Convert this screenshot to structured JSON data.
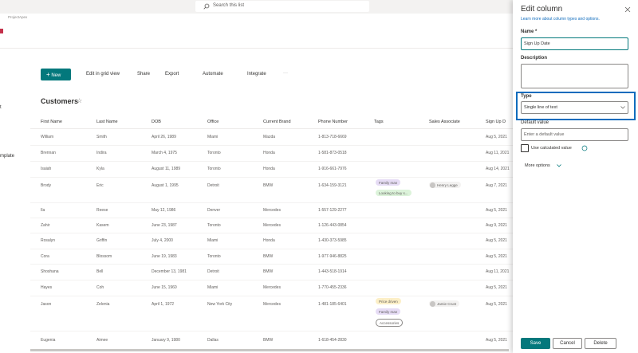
{
  "topbar": {
    "search_placeholder": "Search this list",
    "site": "ProjectApex"
  },
  "nav": {
    "items": [
      "t",
      "mplate"
    ]
  },
  "toolbar": {
    "new": "New",
    "items": [
      "Edit in grid view",
      "Share",
      "Export",
      "Automate",
      "Integrate"
    ],
    "more": "···"
  },
  "list": {
    "title": "Customers",
    "columns": [
      "First Name",
      "Last Name",
      "DOB",
      "Office",
      "Current Brand",
      "Phone Number",
      "Tags",
      "Sales Associate",
      "Sign Up D"
    ],
    "rows": [
      {
        "first": "William",
        "last": "Smith",
        "dob": "April 26, 1989",
        "office": "Miami",
        "brand": "Mazda",
        "phone": "1-813-718-6669",
        "signup": "Aug 5, 2021"
      },
      {
        "first": "Brennan",
        "last": "Indira",
        "dob": "March 4, 1975",
        "office": "Toronto",
        "brand": "Honda",
        "phone": "1-581-873-0518",
        "signup": "Aug 11, 2021"
      },
      {
        "first": "Isaiah",
        "last": "Kyla",
        "dob": "August 11, 1989",
        "office": "Toronto",
        "brand": "Honda",
        "phone": "1-916-661-7976",
        "signup": "Aug 14, 2021"
      },
      {
        "first": "Brody",
        "last": "Eric",
        "dob": "August 1, 1995",
        "office": "Detroit",
        "brand": "BMW",
        "phone": "1-634-159-3121",
        "signup": "Aug 7, 2021",
        "tags": [
          {
            "label": "Family man",
            "color": "#e6dcf5"
          },
          {
            "label": "Looking to buy s...",
            "color": "#dcf3da"
          }
        ],
        "associate": "Henry Legge"
      },
      {
        "first": "Ila",
        "last": "Reese",
        "dob": "May 12, 1986",
        "office": "Denver",
        "brand": "Mercedes",
        "phone": "1-557-129-2277",
        "signup": "Aug 5, 2021"
      },
      {
        "first": "Zahir",
        "last": "Kasem",
        "dob": "June 23, 1987",
        "office": "Toronto",
        "brand": "Mercedes",
        "phone": "1-126-443-0854",
        "signup": "Aug 9, 2021"
      },
      {
        "first": "Rosalyn",
        "last": "Griffin",
        "dob": "July 4, 2000",
        "office": "Miami",
        "brand": "Honda",
        "phone": "1-430-373-5985",
        "signup": "Aug 5, 2021"
      },
      {
        "first": "Cora",
        "last": "Blossom",
        "dob": "June 19, 1983",
        "office": "Toronto",
        "brand": "BMW",
        "phone": "1-977-946-8825",
        "signup": "Aug 5, 2021"
      },
      {
        "first": "Shoshana",
        "last": "Bell",
        "dob": "December 13, 1981",
        "office": "Detroit",
        "brand": "BMW",
        "phone": "1-443-518-1914",
        "signup": "Aug 11, 2021"
      },
      {
        "first": "Hayes",
        "last": "Coh",
        "dob": "June 15, 1960",
        "office": "Miami",
        "brand": "Mercedes",
        "phone": "1-770-455-2336",
        "signup": "Aug 5, 2021"
      },
      {
        "first": "Jason",
        "last": "Zelenia",
        "dob": "April 1, 1972",
        "office": "New York City",
        "brand": "Mercedes",
        "phone": "1-481-185-6401",
        "signup": "Aug 5, 2021",
        "tags": [
          {
            "label": "Price driven",
            "color": "#fcefc7"
          },
          {
            "label": "Family man",
            "color": "#e6dcf5"
          },
          {
            "label": "Accessories",
            "color": "#ffffff"
          }
        ],
        "associate": "Jamie Crust"
      },
      {
        "first": "Eugenia",
        "last": "Aimee",
        "dob": "January 9, 1980",
        "office": "Dallas",
        "brand": "BMW",
        "phone": "1-618-454-2830",
        "signup": "Aug 5, 2021"
      }
    ]
  },
  "panel": {
    "title": "Edit column",
    "link": "Learn more about column types and options.",
    "name_label": "Name *",
    "name_value": "Sign Up Date",
    "description_label": "Description",
    "type_label": "Type",
    "type_value": "Single line of text",
    "default_label": "Default value",
    "default_placeholder": "Enter a default value",
    "calculated_label": "Use calculated value",
    "more_options": "More options",
    "buttons": {
      "save": "Save",
      "cancel": "Cancel",
      "delete": "Delete"
    }
  }
}
